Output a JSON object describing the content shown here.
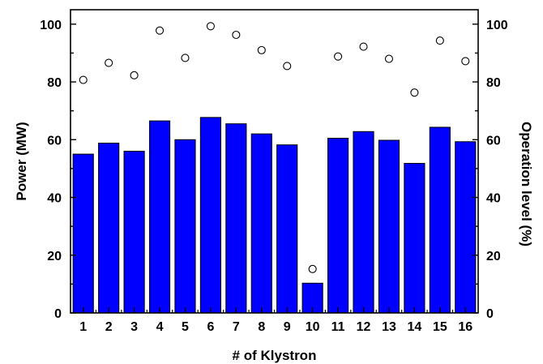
{
  "chart_data": {
    "type": "bar",
    "xlabel": "# of Klystron",
    "ylabel_left": "Power (MW)",
    "ylabel_right": "Operation level (%)",
    "categories": [
      "1",
      "2",
      "3",
      "4",
      "5",
      "6",
      "7",
      "8",
      "9",
      "10",
      "11",
      "12",
      "13",
      "14",
      "15",
      "16"
    ],
    "series": [
      {
        "axis": "left",
        "style": "bar",
        "color": "#0000ff",
        "values": [
          55.0,
          58.8,
          56.0,
          66.5,
          60.0,
          67.7,
          65.5,
          62.0,
          58.2,
          10.3,
          60.5,
          62.8,
          59.8,
          51.8,
          64.3,
          59.3
        ]
      },
      {
        "axis": "right",
        "style": "scatter",
        "marker": "open-circle",
        "values": [
          80.7,
          86.6,
          82.3,
          97.8,
          88.3,
          99.3,
          96.3,
          91.0,
          85.5,
          15.2,
          88.8,
          92.2,
          88.0,
          76.3,
          94.3,
          87.2
        ]
      }
    ],
    "ylim_left": [
      0,
      105
    ],
    "ylim_right": [
      0,
      105
    ],
    "yticks_left": [
      "0",
      "20",
      "40",
      "60",
      "80",
      "100"
    ],
    "yticks_right": [
      "0",
      "20",
      "40",
      "60",
      "80",
      "100"
    ],
    "grid": false
  }
}
